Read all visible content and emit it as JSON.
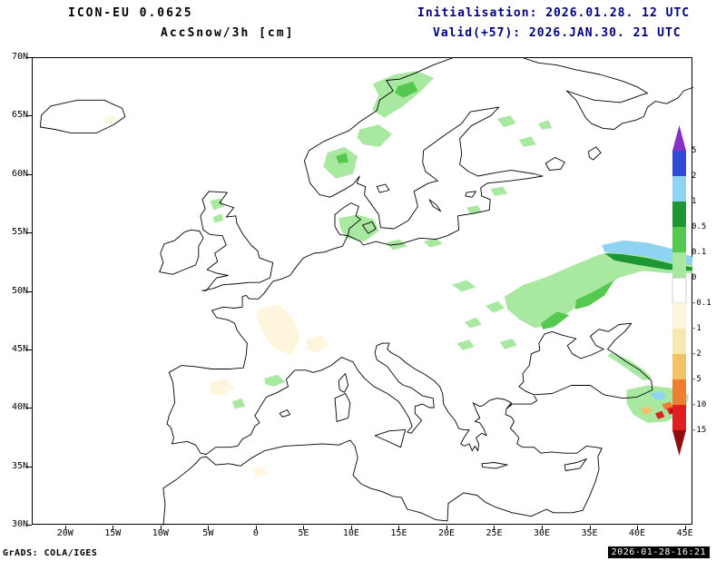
{
  "header": {
    "model_title": "ICON-EU 0.0625",
    "product_title": "AccSnow/3h [cm]",
    "init_line": "Initialisation: 2026.01.28. 12 UTC",
    "valid_line": "Valid(+57): 2026.JAN.30. 21 UTC"
  },
  "map": {
    "lat_labels": [
      "70N",
      "65N",
      "60N",
      "55N",
      "50N",
      "45N",
      "40N",
      "35N",
      "30N"
    ],
    "lon_labels": [
      "20W",
      "15W",
      "10W",
      "5W",
      "0",
      "5E",
      "10E",
      "15E",
      "20E",
      "25E",
      "30E",
      "35E",
      "40E",
      "45E"
    ],
    "lon_degrees": [
      -20,
      -15,
      -10,
      -5,
      0,
      5,
      10,
      15,
      20,
      25,
      30,
      35,
      40,
      45
    ]
  },
  "colorbar": {
    "labels": [
      "5",
      "2",
      "1",
      "0.5",
      "0.1",
      "0",
      "-0.1",
      "-1",
      "-2",
      "-5",
      "-10",
      "-15"
    ],
    "colors": [
      "#8630c8",
      "#2f4bd7",
      "#8fd3f2",
      "#1e9632",
      "#55c94f",
      "#a8e8a0",
      "#ffffff",
      "#fdf5dc",
      "#f7e8b0",
      "#f5c168",
      "#ee7f2f",
      "#e02020",
      "#8f0f10"
    ]
  },
  "footer": {
    "left": "GrADS: COLA/IGES",
    "right": "2026-01-28-16:21"
  },
  "colors": {
    "header_left": "#000000",
    "header_right": "#000080",
    "coastline": "#000000",
    "background": "#ffffff"
  }
}
